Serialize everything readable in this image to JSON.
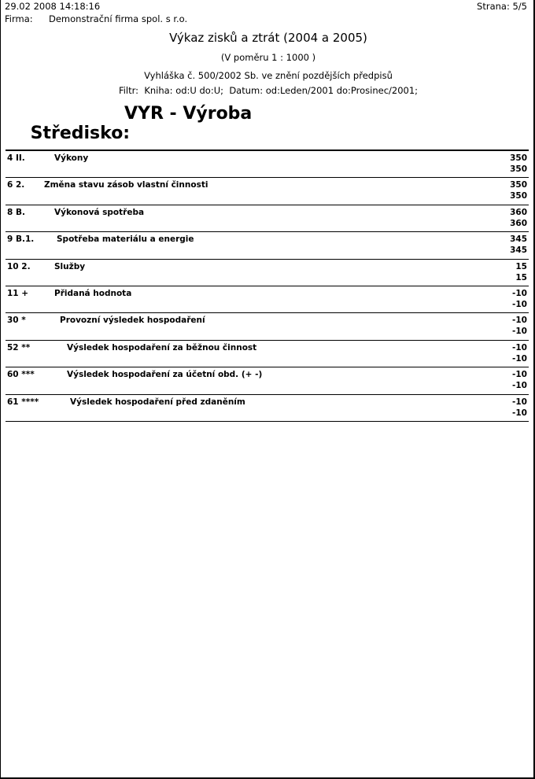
{
  "header": {
    "datetime": "29.02 2008 14:18:16",
    "page": "Strana: 5/5",
    "company_label": "Firma:",
    "company": "Demonstrační firma spol. s r.o."
  },
  "report": {
    "title": "Výkaz zisků a ztrát (2004 a 2005)",
    "scale": "(V poměru 1 : 1000 )",
    "regulation": "Vyhláška č. 500/2002 Sb. ve znění pozdějších předpisů",
    "filter": "Filtr:  Kniha: od:U do:U;  Datum: od:Leden/2001 do:Prosinec/2001;",
    "center_label": "Středisko:",
    "center_value": "VYR - Výroba"
  },
  "rows": [
    {
      "num": "4 II.",
      "label": "Výkony",
      "v1": "350",
      "v2": "350"
    },
    {
      "num": "6 2.",
      "label": "Změna stavu zásob vlastní činnosti",
      "v1": "350",
      "v2": "350"
    },
    {
      "num": "8 B.",
      "label": "Výkonová spotřeba",
      "v1": "360",
      "v2": "360"
    },
    {
      "num": "9 B.1.",
      "label": "Spotřeba materiálu a energie",
      "v1": "345",
      "v2": "345"
    },
    {
      "num": "10 2.",
      "label": "Služby",
      "v1": "15",
      "v2": "15"
    },
    {
      "num": "11 +",
      "label": "Přidaná hodnota",
      "v1": "-10",
      "v2": "-10"
    },
    {
      "num": "30 *",
      "label": "Provozní výsledek hospodaření",
      "v1": "-10",
      "v2": "-10"
    },
    {
      "num": "52 **",
      "label": "Výsledek hospodaření za běžnou činnost",
      "v1": "-10",
      "v2": "-10"
    },
    {
      "num": "60 ***",
      "label": "Výsledek hospodaření za účetní obd. (+ -)",
      "v1": "-10",
      "v2": "-10"
    },
    {
      "num": "61 ****",
      "label": "Výsledek hospodaření před zdaněním",
      "v1": "-10",
      "v2": "-10"
    }
  ]
}
